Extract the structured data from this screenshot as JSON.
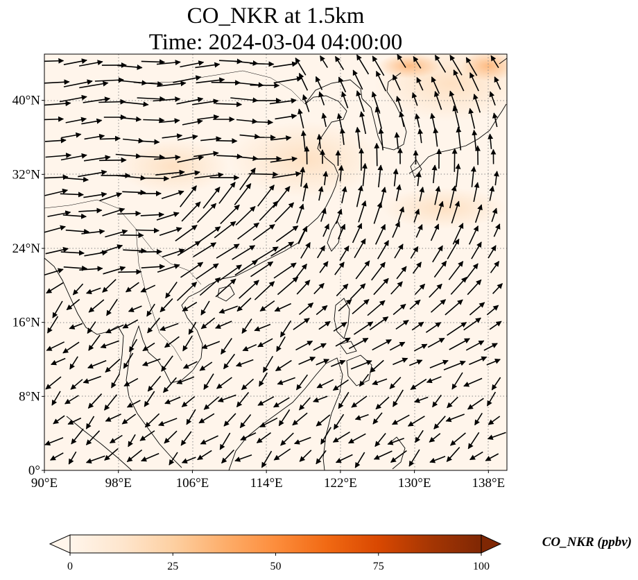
{
  "title": {
    "line1": "CO_NKR at 1.5km",
    "line2": "Time: 2024-03-04 04:00:00"
  },
  "map": {
    "extent": {
      "lon_min": 90,
      "lon_max": 140,
      "lat_min": 0,
      "lat_max": 45
    },
    "gridlines": "dotted",
    "x_ticks": [
      {
        "lon": 90,
        "label": "90°E"
      },
      {
        "lon": 98,
        "label": "98°E"
      },
      {
        "lon": 106,
        "label": "106°E"
      },
      {
        "lon": 114,
        "label": "114°E"
      },
      {
        "lon": 122,
        "label": "122°E"
      },
      {
        "lon": 130,
        "label": "130°E"
      },
      {
        "lon": 138,
        "label": "138°E"
      }
    ],
    "y_ticks": [
      {
        "lat": 0,
        "label": "0°"
      },
      {
        "lat": 8,
        "label": "8°N"
      },
      {
        "lat": 16,
        "label": "16°N"
      },
      {
        "lat": 24,
        "label": "24°N"
      },
      {
        "lat": 32,
        "label": "32°N"
      },
      {
        "lat": 40,
        "label": "40°N"
      }
    ],
    "field": "CO_NKR",
    "overlay": "wind vectors",
    "colors": {
      "background": "#fff5eb",
      "coast": "#000000",
      "grid": "#888888",
      "arrow": "#000000"
    }
  },
  "colorbar": {
    "label": "CO_NKR (ppbv)",
    "min": 0,
    "max": 100,
    "extend": "both",
    "ticks": [
      {
        "value": 0,
        "label": "0"
      },
      {
        "value": 25,
        "label": "25"
      },
      {
        "value": 50,
        "label": "50"
      },
      {
        "value": 75,
        "label": "75"
      },
      {
        "value": 100,
        "label": "100"
      }
    ],
    "colormap": [
      "#fff5eb",
      "#fee6ce",
      "#fdd0a2",
      "#fdae6b",
      "#fd8d3c",
      "#f16913",
      "#d94801",
      "#a63603",
      "#7f2704"
    ]
  }
}
